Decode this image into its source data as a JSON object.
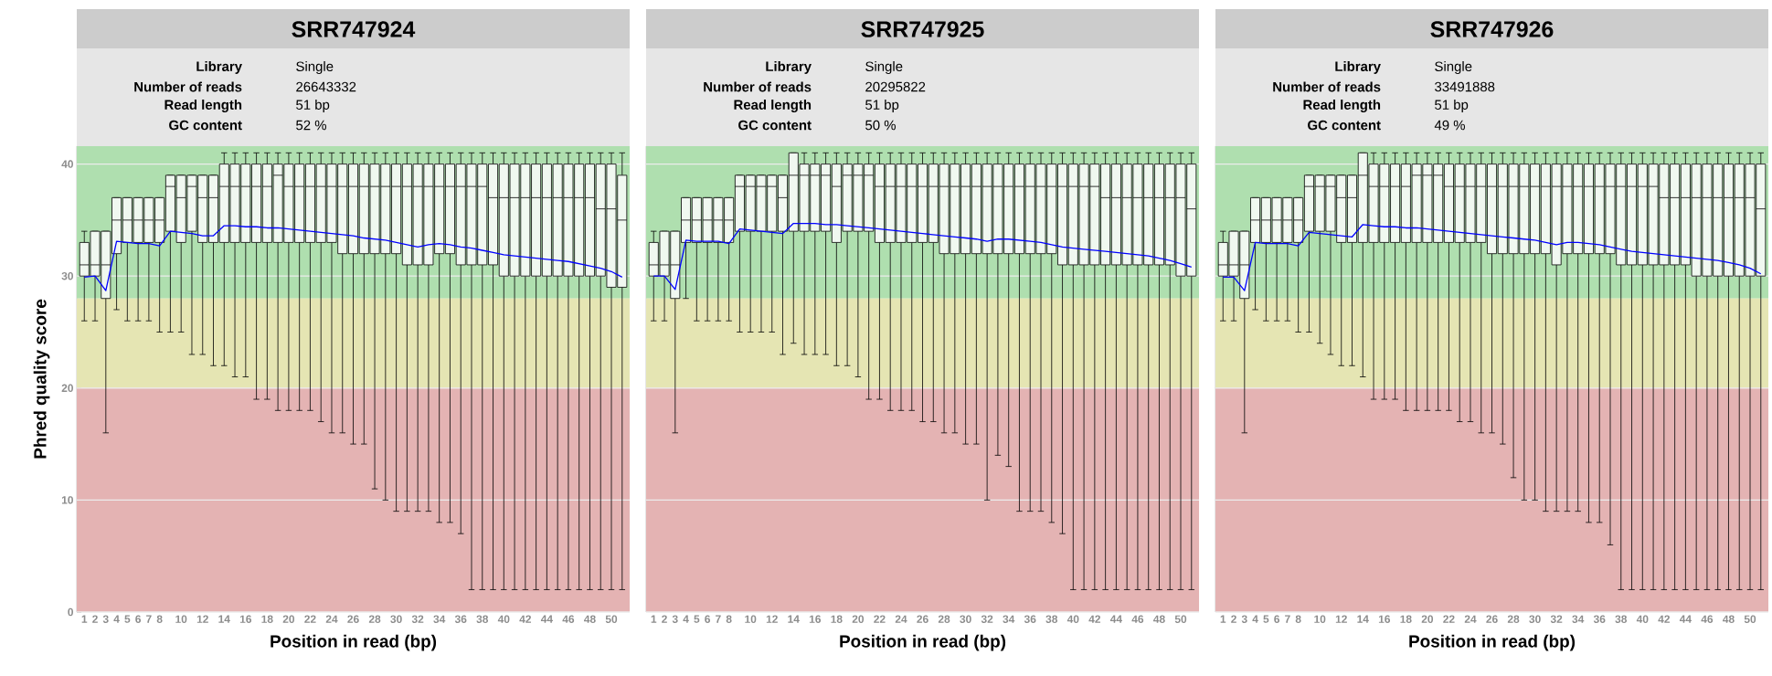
{
  "chart_data": [
    {
      "type": "box",
      "title": "SRR747924",
      "annotations": [
        "Library",
        "Single",
        "Number of reads",
        "26643332",
        "Read length",
        "51 bp",
        "GC content",
        "52 %"
      ],
      "xlabel": "Position in read (bp)",
      "ylabel": "Phred quality score",
      "categories": [
        "1",
        "2",
        "3",
        "4",
        "5",
        "6",
        "7",
        "8",
        null,
        "10",
        null,
        "12",
        null,
        "14",
        null,
        "16",
        null,
        "18",
        null,
        "20",
        null,
        "22",
        null,
        "24",
        null,
        "26",
        null,
        "28",
        null,
        "30",
        null,
        "32",
        null,
        "34",
        null,
        "36",
        null,
        "38",
        null,
        "40",
        null,
        "42",
        null,
        "44",
        null,
        "46",
        null,
        "48",
        null,
        "50",
        null
      ],
      "ylim": [
        0,
        41.6
      ],
      "yticks": [
        0,
        10,
        20,
        30,
        40
      ],
      "grid": "y",
      "bands": [
        {
          "axis": "y",
          "from": 28,
          "to": 41.6,
          "color": "#afdfaf"
        },
        {
          "axis": "y",
          "from": 20,
          "to": 28,
          "color": "#e5e5b3"
        },
        {
          "axis": "y",
          "from": 0,
          "to": 20,
          "color": "#e4b3b3"
        }
      ],
      "series": [
        {
          "type": "box",
          "color": "#f0f8f0",
          "boxes": [
            {
              "low": 26,
              "q1": 30,
              "median": 31,
              "q3": 33,
              "high": 34
            },
            {
              "low": 26,
              "q1": 30,
              "median": 31,
              "q3": 34,
              "high": 34
            },
            {
              "low": 16,
              "q1": 28,
              "median": 31,
              "q3": 34,
              "high": 34
            },
            {
              "low": 27,
              "q1": 32,
              "median": 35,
              "q3": 37,
              "high": 37
            },
            {
              "low": 26,
              "q1": 33,
              "median": 35,
              "q3": 37,
              "high": 37
            },
            {
              "low": 26,
              "q1": 33,
              "median": 35,
              "q3": 37,
              "high": 37
            },
            {
              "low": 26,
              "q1": 33,
              "median": 35,
              "q3": 37,
              "high": 37
            },
            {
              "low": 25,
              "q1": 33,
              "median": 35,
              "q3": 37,
              "high": 37
            },
            {
              "low": 25,
              "q1": 34,
              "median": 38,
              "q3": 39,
              "high": 39
            },
            {
              "low": 25,
              "q1": 33,
              "median": 37,
              "q3": 39,
              "high": 39
            },
            {
              "low": 23,
              "q1": 34,
              "median": 38,
              "q3": 39,
              "high": 39
            },
            {
              "low": 23,
              "q1": 33,
              "median": 37,
              "q3": 39,
              "high": 39
            },
            {
              "low": 22,
              "q1": 33,
              "median": 37,
              "q3": 39,
              "high": 39
            },
            {
              "low": 22,
              "q1": 33,
              "median": 38,
              "q3": 40,
              "high": 41
            },
            {
              "low": 21,
              "q1": 33,
              "median": 38,
              "q3": 40,
              "high": 41
            },
            {
              "low": 21,
              "q1": 33,
              "median": 38,
              "q3": 40,
              "high": 41
            },
            {
              "low": 19,
              "q1": 33,
              "median": 38,
              "q3": 40,
              "high": 41
            },
            {
              "low": 19,
              "q1": 33,
              "median": 38,
              "q3": 40,
              "high": 41
            },
            {
              "low": 18,
              "q1": 33,
              "median": 39,
              "q3": 40,
              "high": 41
            },
            {
              "low": 18,
              "q1": 33,
              "median": 38,
              "q3": 40,
              "high": 41
            },
            {
              "low": 18,
              "q1": 33,
              "median": 38,
              "q3": 40,
              "high": 41
            },
            {
              "low": 18,
              "q1": 33,
              "median": 38,
              "q3": 40,
              "high": 41
            },
            {
              "low": 17,
              "q1": 33,
              "median": 38,
              "q3": 40,
              "high": 41
            },
            {
              "low": 16,
              "q1": 33,
              "median": 38,
              "q3": 40,
              "high": 41
            },
            {
              "low": 16,
              "q1": 32,
              "median": 38,
              "q3": 40,
              "high": 41
            },
            {
              "low": 15,
              "q1": 32,
              "median": 38,
              "q3": 40,
              "high": 41
            },
            {
              "low": 15,
              "q1": 32,
              "median": 38,
              "q3": 40,
              "high": 41
            },
            {
              "low": 11,
              "q1": 32,
              "median": 38,
              "q3": 40,
              "high": 41
            },
            {
              "low": 10,
              "q1": 32,
              "median": 38,
              "q3": 40,
              "high": 41
            },
            {
              "low": 9,
              "q1": 32,
              "median": 38,
              "q3": 40,
              "high": 41
            },
            {
              "low": 9,
              "q1": 31,
              "median": 38,
              "q3": 40,
              "high": 41
            },
            {
              "low": 9,
              "q1": 31,
              "median": 38,
              "q3": 40,
              "high": 41
            },
            {
              "low": 9,
              "q1": 31,
              "median": 38,
              "q3": 40,
              "high": 41
            },
            {
              "low": 8,
              "q1": 32,
              "median": 38,
              "q3": 40,
              "high": 41
            },
            {
              "low": 8,
              "q1": 32,
              "median": 38,
              "q3": 40,
              "high": 41
            },
            {
              "low": 7,
              "q1": 31,
              "median": 38,
              "q3": 40,
              "high": 41
            },
            {
              "low": 2,
              "q1": 31,
              "median": 38,
              "q3": 40,
              "high": 41
            },
            {
              "low": 2,
              "q1": 31,
              "median": 38,
              "q3": 40,
              "high": 41
            },
            {
              "low": 2,
              "q1": 31,
              "median": 37,
              "q3": 40,
              "high": 41
            },
            {
              "low": 2,
              "q1": 30,
              "median": 37,
              "q3": 40,
              "high": 41
            },
            {
              "low": 2,
              "q1": 30,
              "median": 37,
              "q3": 40,
              "high": 41
            },
            {
              "low": 2,
              "q1": 30,
              "median": 37,
              "q3": 40,
              "high": 41
            },
            {
              "low": 2,
              "q1": 30,
              "median": 37,
              "q3": 40,
              "high": 41
            },
            {
              "low": 2,
              "q1": 30,
              "median": 37,
              "q3": 40,
              "high": 41
            },
            {
              "low": 2,
              "q1": 30,
              "median": 37,
              "q3": 40,
              "high": 41
            },
            {
              "low": 2,
              "q1": 30,
              "median": 37,
              "q3": 40,
              "high": 41
            },
            {
              "low": 2,
              "q1": 30,
              "median": 37,
              "q3": 40,
              "high": 41
            },
            {
              "low": 2,
              "q1": 30,
              "median": 37,
              "q3": 40,
              "high": 41
            },
            {
              "low": 2,
              "q1": 30,
              "median": 36,
              "q3": 40,
              "high": 41
            },
            {
              "low": 2,
              "q1": 29,
              "median": 36,
              "q3": 40,
              "high": 41
            },
            {
              "low": 2,
              "q1": 29,
              "median": 35,
              "q3": 39,
              "high": 41
            }
          ]
        },
        {
          "type": "line",
          "color": "#0000ff",
          "values": [
            29.9,
            30.0,
            28.7,
            33.1,
            33.0,
            32.9,
            32.9,
            32.7,
            34.0,
            33.9,
            33.8,
            33.6,
            33.6,
            34.5,
            34.5,
            34.4,
            34.4,
            34.3,
            34.3,
            34.2,
            34.1,
            34.0,
            33.9,
            33.8,
            33.7,
            33.6,
            33.4,
            33.3,
            33.2,
            33.0,
            32.8,
            32.6,
            32.8,
            32.9,
            32.8,
            32.6,
            32.5,
            32.3,
            32.1,
            31.9,
            31.8,
            31.7,
            31.6,
            31.5,
            31.4,
            31.3,
            31.1,
            30.9,
            30.7,
            30.4,
            29.9
          ]
        }
      ]
    },
    {
      "type": "box",
      "title": "SRR747925",
      "annotations": [
        "Library",
        "Single",
        "Number of reads",
        "20295822",
        "Read length",
        "51 bp",
        "GC content",
        "50 %"
      ],
      "xlabel": "Position in read (bp)",
      "tick_labels": "x",
      "categories": [
        "1",
        "2",
        "3",
        "4",
        "5",
        "6",
        "7",
        "8",
        null,
        "10",
        null,
        "12",
        null,
        "14",
        null,
        "16",
        null,
        "18",
        null,
        "20",
        null,
        "22",
        null,
        "24",
        null,
        "26",
        null,
        "28",
        null,
        "30",
        null,
        "32",
        null,
        "34",
        null,
        "36",
        null,
        "38",
        null,
        "40",
        null,
        "42",
        null,
        "44",
        null,
        "46",
        null,
        "48",
        null,
        "50",
        null
      ],
      "ylim": [
        0,
        41.6
      ],
      "yticks": [
        0,
        10,
        20,
        30,
        40
      ],
      "grid": "y",
      "bands": [
        {
          "axis": "y",
          "from": 28,
          "to": 41.6,
          "color": "#afdfaf"
        },
        {
          "axis": "y",
          "from": 20,
          "to": 28,
          "color": "#e5e5b3"
        },
        {
          "axis": "y",
          "from": 0,
          "to": 20,
          "color": "#e4b3b3"
        }
      ],
      "series": [
        {
          "type": "box",
          "color": "#f0f8f0",
          "boxes": [
            {
              "low": 26,
              "q1": 30,
              "median": 31,
              "q3": 33,
              "high": 34
            },
            {
              "low": 26,
              "q1": 30,
              "median": 31,
              "q3": 34,
              "high": 34
            },
            {
              "low": 16,
              "q1": 28,
              "median": 31,
              "q3": 34,
              "high": 34
            },
            {
              "low": 28,
              "q1": 33,
              "median": 35,
              "q3": 37,
              "high": 37
            },
            {
              "low": 26,
              "q1": 33,
              "median": 35,
              "q3": 37,
              "high": 37
            },
            {
              "low": 26,
              "q1": 33,
              "median": 35,
              "q3": 37,
              "high": 37
            },
            {
              "low": 26,
              "q1": 33,
              "median": 35,
              "q3": 37,
              "high": 37
            },
            {
              "low": 26,
              "q1": 33,
              "median": 35,
              "q3": 37,
              "high": 37
            },
            {
              "low": 25,
              "q1": 34,
              "median": 38,
              "q3": 39,
              "high": 39
            },
            {
              "low": 25,
              "q1": 34,
              "median": 38,
              "q3": 39,
              "high": 39
            },
            {
              "low": 25,
              "q1": 34,
              "median": 38,
              "q3": 39,
              "high": 39
            },
            {
              "low": 25,
              "q1": 34,
              "median": 38,
              "q3": 39,
              "high": 39
            },
            {
              "low": 23,
              "q1": 34,
              "median": 37,
              "q3": 39,
              "high": 39
            },
            {
              "low": 24,
              "q1": 34,
              "median": 39,
              "q3": 41,
              "high": 41
            },
            {
              "low": 23,
              "q1": 34,
              "median": 39,
              "q3": 40,
              "high": 41
            },
            {
              "low": 23,
              "q1": 34,
              "median": 39,
              "q3": 40,
              "high": 41
            },
            {
              "low": 23,
              "q1": 34,
              "median": 39,
              "q3": 40,
              "high": 41
            },
            {
              "low": 22,
              "q1": 33,
              "median": 38,
              "q3": 40,
              "high": 41
            },
            {
              "low": 22,
              "q1": 34,
              "median": 39,
              "q3": 40,
              "high": 41
            },
            {
              "low": 21,
              "q1": 34,
              "median": 39,
              "q3": 40,
              "high": 41
            },
            {
              "low": 19,
              "q1": 34,
              "median": 39,
              "q3": 40,
              "high": 41
            },
            {
              "low": 19,
              "q1": 33,
              "median": 38,
              "q3": 40,
              "high": 41
            },
            {
              "low": 18,
              "q1": 33,
              "median": 38,
              "q3": 40,
              "high": 41
            },
            {
              "low": 18,
              "q1": 33,
              "median": 38,
              "q3": 40,
              "high": 41
            },
            {
              "low": 18,
              "q1": 33,
              "median": 38,
              "q3": 40,
              "high": 41
            },
            {
              "low": 17,
              "q1": 33,
              "median": 38,
              "q3": 40,
              "high": 41
            },
            {
              "low": 17,
              "q1": 33,
              "median": 38,
              "q3": 40,
              "high": 41
            },
            {
              "low": 16,
              "q1": 32,
              "median": 38,
              "q3": 40,
              "high": 41
            },
            {
              "low": 16,
              "q1": 32,
              "median": 38,
              "q3": 40,
              "high": 41
            },
            {
              "low": 15,
              "q1": 32,
              "median": 38,
              "q3": 40,
              "high": 41
            },
            {
              "low": 15,
              "q1": 32,
              "median": 38,
              "q3": 40,
              "high": 41
            },
            {
              "low": 10,
              "q1": 32,
              "median": 38,
              "q3": 40,
              "high": 41
            },
            {
              "low": 14,
              "q1": 32,
              "median": 38,
              "q3": 40,
              "high": 41
            },
            {
              "low": 13,
              "q1": 32,
              "median": 38,
              "q3": 40,
              "high": 41
            },
            {
              "low": 9,
              "q1": 32,
              "median": 38,
              "q3": 40,
              "high": 41
            },
            {
              "low": 9,
              "q1": 32,
              "median": 38,
              "q3": 40,
              "high": 41
            },
            {
              "low": 9,
              "q1": 32,
              "median": 38,
              "q3": 40,
              "high": 41
            },
            {
              "low": 8,
              "q1": 32,
              "median": 38,
              "q3": 40,
              "high": 41
            },
            {
              "low": 7,
              "q1": 31,
              "median": 38,
              "q3": 40,
              "high": 41
            },
            {
              "low": 2,
              "q1": 31,
              "median": 38,
              "q3": 40,
              "high": 41
            },
            {
              "low": 2,
              "q1": 31,
              "median": 38,
              "q3": 40,
              "high": 41
            },
            {
              "low": 2,
              "q1": 31,
              "median": 38,
              "q3": 40,
              "high": 41
            },
            {
              "low": 2,
              "q1": 31,
              "median": 37,
              "q3": 40,
              "high": 41
            },
            {
              "low": 2,
              "q1": 31,
              "median": 37,
              "q3": 40,
              "high": 41
            },
            {
              "low": 2,
              "q1": 31,
              "median": 37,
              "q3": 40,
              "high": 41
            },
            {
              "low": 2,
              "q1": 31,
              "median": 37,
              "q3": 40,
              "high": 41
            },
            {
              "low": 2,
              "q1": 31,
              "median": 37,
              "q3": 40,
              "high": 41
            },
            {
              "low": 2,
              "q1": 31,
              "median": 37,
              "q3": 40,
              "high": 41
            },
            {
              "low": 2,
              "q1": 31,
              "median": 37,
              "q3": 40,
              "high": 41
            },
            {
              "low": 2,
              "q1": 30,
              "median": 37,
              "q3": 40,
              "high": 41
            },
            {
              "low": 2,
              "q1": 30,
              "median": 36,
              "q3": 40,
              "high": 41
            }
          ]
        },
        {
          "type": "line",
          "color": "#0000ff",
          "values": [
            30.0,
            30.0,
            28.8,
            33.2,
            33.1,
            33.1,
            33.1,
            32.9,
            34.2,
            34.1,
            34.0,
            33.9,
            33.8,
            34.7,
            34.7,
            34.7,
            34.6,
            34.6,
            34.5,
            34.4,
            34.3,
            34.2,
            34.1,
            34.0,
            33.9,
            33.8,
            33.7,
            33.6,
            33.5,
            33.4,
            33.3,
            33.1,
            33.3,
            33.3,
            33.2,
            33.1,
            33.0,
            32.8,
            32.6,
            32.5,
            32.4,
            32.3,
            32.2,
            32.1,
            32.0,
            31.9,
            31.8,
            31.6,
            31.4,
            31.1,
            30.8
          ]
        }
      ]
    },
    {
      "type": "box",
      "title": "SRR747926",
      "annotations": [
        "Library",
        "Single",
        "Number of reads",
        "33491888",
        "Read length",
        "51 bp",
        "GC content",
        "49 %"
      ],
      "xlabel": "Position in read (bp)",
      "tick_labels": "x",
      "categories": [
        "1",
        "2",
        "3",
        "4",
        "5",
        "6",
        "7",
        "8",
        null,
        "10",
        null,
        "12",
        null,
        "14",
        null,
        "16",
        null,
        "18",
        null,
        "20",
        null,
        "22",
        null,
        "24",
        null,
        "26",
        null,
        "28",
        null,
        "30",
        null,
        "32",
        null,
        "34",
        null,
        "36",
        null,
        "38",
        null,
        "40",
        null,
        "42",
        null,
        "44",
        null,
        "46",
        null,
        "48",
        null,
        "50",
        null
      ],
      "ylim": [
        0,
        41.6
      ],
      "yticks": [
        0,
        10,
        20,
        30,
        40
      ],
      "grid": "y",
      "bands": [
        {
          "axis": "y",
          "from": 28,
          "to": 41.6,
          "color": "#afdfaf"
        },
        {
          "axis": "y",
          "from": 20,
          "to": 28,
          "color": "#e5e5b3"
        },
        {
          "axis": "y",
          "from": 0,
          "to": 20,
          "color": "#e4b3b3"
        }
      ],
      "series": [
        {
          "type": "box",
          "color": "#f0f8f0",
          "boxes": [
            {
              "low": 26,
              "q1": 30,
              "median": 31,
              "q3": 33,
              "high": 34
            },
            {
              "low": 26,
              "q1": 30,
              "median": 31,
              "q3": 34,
              "high": 34
            },
            {
              "low": 16,
              "q1": 28,
              "median": 31,
              "q3": 34,
              "high": 34
            },
            {
              "low": 27,
              "q1": 33,
              "median": 35,
              "q3": 37,
              "high": 37
            },
            {
              "low": 26,
              "q1": 33,
              "median": 35,
              "q3": 37,
              "high": 37
            },
            {
              "low": 26,
              "q1": 33,
              "median": 35,
              "q3": 37,
              "high": 37
            },
            {
              "low": 26,
              "q1": 33,
              "median": 35,
              "q3": 37,
              "high": 37
            },
            {
              "low": 25,
              "q1": 33,
              "median": 35,
              "q3": 37,
              "high": 37
            },
            {
              "low": 25,
              "q1": 34,
              "median": 38,
              "q3": 39,
              "high": 39
            },
            {
              "low": 24,
              "q1": 34,
              "median": 38,
              "q3": 39,
              "high": 39
            },
            {
              "low": 23,
              "q1": 34,
              "median": 38,
              "q3": 39,
              "high": 39
            },
            {
              "low": 22,
              "q1": 33,
              "median": 37,
              "q3": 39,
              "high": 39
            },
            {
              "low": 22,
              "q1": 33,
              "median": 37,
              "q3": 39,
              "high": 39
            },
            {
              "low": 21,
              "q1": 33,
              "median": 39,
              "q3": 41,
              "high": 41
            },
            {
              "low": 19,
              "q1": 33,
              "median": 38,
              "q3": 40,
              "high": 41
            },
            {
              "low": 19,
              "q1": 33,
              "median": 38,
              "q3": 40,
              "high": 41
            },
            {
              "low": 19,
              "q1": 33,
              "median": 38,
              "q3": 40,
              "high": 41
            },
            {
              "low": 18,
              "q1": 33,
              "median": 38,
              "q3": 40,
              "high": 41
            },
            {
              "low": 18,
              "q1": 33,
              "median": 39,
              "q3": 40,
              "high": 41
            },
            {
              "low": 18,
              "q1": 33,
              "median": 39,
              "q3": 40,
              "high": 41
            },
            {
              "low": 18,
              "q1": 33,
              "median": 39,
              "q3": 40,
              "high": 41
            },
            {
              "low": 18,
              "q1": 33,
              "median": 38,
              "q3": 40,
              "high": 41
            },
            {
              "low": 17,
              "q1": 33,
              "median": 38,
              "q3": 40,
              "high": 41
            },
            {
              "low": 17,
              "q1": 33,
              "median": 38,
              "q3": 40,
              "high": 41
            },
            {
              "low": 16,
              "q1": 33,
              "median": 38,
              "q3": 40,
              "high": 41
            },
            {
              "low": 16,
              "q1": 32,
              "median": 38,
              "q3": 40,
              "high": 41
            },
            {
              "low": 15,
              "q1": 32,
              "median": 38,
              "q3": 40,
              "high": 41
            },
            {
              "low": 12,
              "q1": 32,
              "median": 38,
              "q3": 40,
              "high": 41
            },
            {
              "low": 10,
              "q1": 32,
              "median": 38,
              "q3": 40,
              "high": 41
            },
            {
              "low": 10,
              "q1": 32,
              "median": 38,
              "q3": 40,
              "high": 41
            },
            {
              "low": 9,
              "q1": 32,
              "median": 38,
              "q3": 40,
              "high": 41
            },
            {
              "low": 9,
              "q1": 31,
              "median": 38,
              "q3": 40,
              "high": 41
            },
            {
              "low": 9,
              "q1": 32,
              "median": 38,
              "q3": 40,
              "high": 41
            },
            {
              "low": 9,
              "q1": 32,
              "median": 38,
              "q3": 40,
              "high": 41
            },
            {
              "low": 8,
              "q1": 32,
              "median": 38,
              "q3": 40,
              "high": 41
            },
            {
              "low": 8,
              "q1": 32,
              "median": 38,
              "q3": 40,
              "high": 41
            },
            {
              "low": 6,
              "q1": 32,
              "median": 38,
              "q3": 40,
              "high": 41
            },
            {
              "low": 2,
              "q1": 31,
              "median": 38,
              "q3": 40,
              "high": 41
            },
            {
              "low": 2,
              "q1": 31,
              "median": 38,
              "q3": 40,
              "high": 41
            },
            {
              "low": 2,
              "q1": 31,
              "median": 38,
              "q3": 40,
              "high": 41
            },
            {
              "low": 2,
              "q1": 31,
              "median": 38,
              "q3": 40,
              "high": 41
            },
            {
              "low": 2,
              "q1": 31,
              "median": 37,
              "q3": 40,
              "high": 41
            },
            {
              "low": 2,
              "q1": 31,
              "median": 37,
              "q3": 40,
              "high": 41
            },
            {
              "low": 2,
              "q1": 31,
              "median": 37,
              "q3": 40,
              "high": 41
            },
            {
              "low": 2,
              "q1": 30,
              "median": 37,
              "q3": 40,
              "high": 41
            },
            {
              "low": 2,
              "q1": 30,
              "median": 37,
              "q3": 40,
              "high": 41
            },
            {
              "low": 2,
              "q1": 30,
              "median": 37,
              "q3": 40,
              "high": 41
            },
            {
              "low": 2,
              "q1": 30,
              "median": 37,
              "q3": 40,
              "high": 41
            },
            {
              "low": 2,
              "q1": 30,
              "median": 37,
              "q3": 40,
              "high": 41
            },
            {
              "low": 2,
              "q1": 30,
              "median": 37,
              "q3": 40,
              "high": 41
            },
            {
              "low": 2,
              "q1": 30,
              "median": 36,
              "q3": 40,
              "high": 41
            }
          ]
        },
        {
          "type": "line",
          "color": "#0000ff",
          "values": [
            29.9,
            29.9,
            28.7,
            33.0,
            32.9,
            32.9,
            32.9,
            32.7,
            33.9,
            33.8,
            33.7,
            33.6,
            33.5,
            34.6,
            34.5,
            34.4,
            34.4,
            34.3,
            34.3,
            34.2,
            34.1,
            34.0,
            33.9,
            33.8,
            33.7,
            33.6,
            33.5,
            33.4,
            33.3,
            33.2,
            33.0,
            32.8,
            33.0,
            33.0,
            32.9,
            32.8,
            32.6,
            32.4,
            32.2,
            32.1,
            32.0,
            31.9,
            31.8,
            31.7,
            31.6,
            31.5,
            31.4,
            31.2,
            31.0,
            30.7,
            30.2
          ]
        }
      ]
    }
  ]
}
